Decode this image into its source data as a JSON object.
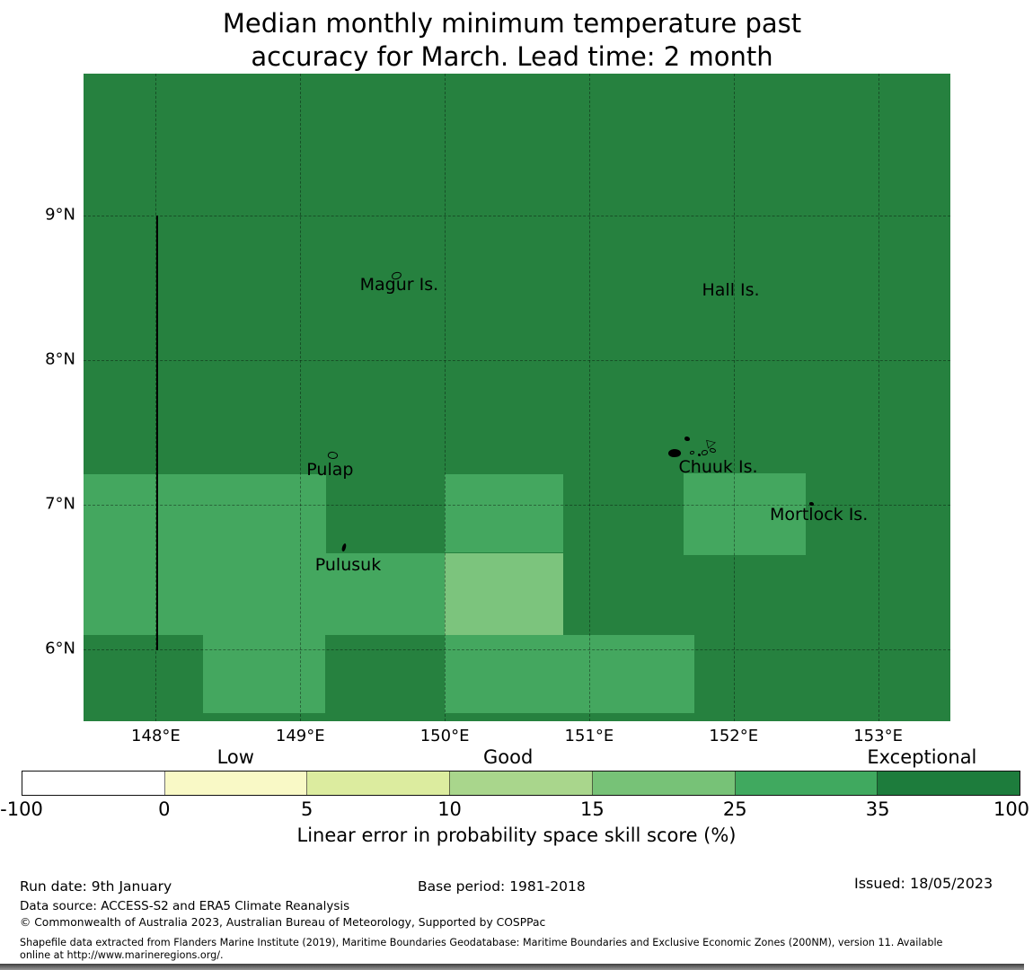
{
  "title": {
    "line1": "Median monthly minimum temperature past",
    "line2": "accuracy for March. Lead time: 2 month"
  },
  "chart_data": {
    "type": "heatmap",
    "title": "Median monthly minimum temperature past accuracy for March. Lead time: 2 month",
    "axes": {
      "lon_min": 147.5,
      "lon_max": 153.5,
      "lat_min": 5.5,
      "lat_max": 9.98,
      "grid": "dashed"
    },
    "x_ticks": [
      {
        "value": 148,
        "label": "148°E"
      },
      {
        "value": 149,
        "label": "149°E"
      },
      {
        "value": 150,
        "label": "150°E"
      },
      {
        "value": 151,
        "label": "151°E"
      },
      {
        "value": 152,
        "label": "152°E"
      },
      {
        "value": 153,
        "label": "153°E"
      }
    ],
    "y_ticks": [
      {
        "value": 9,
        "label": "9°N"
      },
      {
        "value": 8,
        "label": "8°N"
      },
      {
        "value": 7,
        "label": "7°N"
      },
      {
        "value": 6,
        "label": "6°N"
      }
    ],
    "background_value": "35-100",
    "map_palette": {
      "35-100": "#26813f",
      "25-35": "#44a75f",
      "15-25": "#7cc47d"
    },
    "cells": [
      {
        "lon1": 147.5,
        "lon2": 149.18,
        "lat1": 6.099,
        "lat2": 7.211,
        "value": "25-35"
      },
      {
        "lon1": 149.18,
        "lon2": 150.0,
        "lat1": 6.099,
        "lat2": 6.665,
        "value": "25-35"
      },
      {
        "lon1": 150.0,
        "lon2": 150.82,
        "lat1": 6.665,
        "lat2": 7.211,
        "value": "25-35"
      },
      {
        "lon1": 150.0,
        "lon2": 150.82,
        "lat1": 6.099,
        "lat2": 6.665,
        "value": "15-25"
      },
      {
        "lon1": 151.655,
        "lon2": 152.5,
        "lat1": 6.652,
        "lat2": 7.217,
        "value": "25-35"
      },
      {
        "lon1": 148.33,
        "lon2": 149.17,
        "lat1": 5.553,
        "lat2": 6.099,
        "value": "25-35"
      },
      {
        "lon1": 150.0,
        "lon2": 151.73,
        "lat1": 5.553,
        "lat2": 6.099,
        "value": "25-35"
      }
    ],
    "eez_line": {
      "lon": 148.005,
      "lat_from": 9.0,
      "lat_to": 5.99
    },
    "islands": [
      {
        "name": "magur",
        "lon": 149.667,
        "lat": 8.584,
        "w": 11,
        "h": 8,
        "style": "outline",
        "rot": -10
      },
      {
        "name": "pulap",
        "lon": 149.225,
        "lat": 7.342,
        "w": 11,
        "h": 8,
        "style": "outline",
        "rot": 15
      },
      {
        "name": "pulusuk",
        "lon": 149.306,
        "lat": 6.7,
        "w": 4,
        "h": 9,
        "style": "fill",
        "rot": 20
      },
      {
        "name": "chuuk-west",
        "lon": 151.594,
        "lat": 7.354,
        "w": 14,
        "h": 9,
        "style": "fill",
        "rot": -8
      },
      {
        "name": "chuuk-small-1",
        "lon": 151.68,
        "lat": 7.453,
        "w": 6,
        "h": 5,
        "style": "fill",
        "rot": 0
      },
      {
        "name": "chuuk-small-2",
        "lon": 151.71,
        "lat": 7.36,
        "w": 5,
        "h": 4,
        "style": "outline",
        "rot": 0
      },
      {
        "name": "chuuk-triangle",
        "lon": 151.855,
        "lat": 7.429,
        "w": 13,
        "h": 11,
        "style": "tri",
        "rot": -12
      },
      {
        "name": "chuuk-small-3",
        "lon": 151.8,
        "lat": 7.36,
        "w": 7,
        "h": 6,
        "style": "outline",
        "rot": 0
      },
      {
        "name": "chuuk-small-4",
        "lon": 151.855,
        "lat": 7.373,
        "w": 7,
        "h": 5,
        "style": "outline",
        "rot": 25
      },
      {
        "name": "chuuk-dot",
        "lon": 151.76,
        "lat": 7.342,
        "w": 3,
        "h": 3,
        "style": "fill",
        "rot": 0
      },
      {
        "name": "mortlock",
        "lon": 152.54,
        "lat": 7.006,
        "w": 5,
        "h": 4,
        "style": "fill",
        "rot": 0
      }
    ],
    "island_labels": [
      {
        "text": "Magur Is.",
        "lon": 149.685,
        "lat": 8.522
      },
      {
        "text": "Hall Is.",
        "lon": 151.98,
        "lat": 8.484
      },
      {
        "text": "Pulap",
        "lon": 149.206,
        "lat": 7.242
      },
      {
        "text": "Chuuk Is.",
        "lon": 151.893,
        "lat": 7.261
      },
      {
        "text": "Pulusuk",
        "lon": 149.331,
        "lat": 6.584
      },
      {
        "text": "Mortlock Is.",
        "lon": 152.59,
        "lat": 6.932
      }
    ],
    "colorbar": {
      "label": "Linear error in probability space skill score (%)",
      "boundaries": [
        -100,
        0,
        5,
        10,
        15,
        25,
        35,
        100
      ],
      "tick_labels": [
        "-100",
        "0",
        "5",
        "10",
        "15",
        "25",
        "35",
        "100"
      ],
      "segments": [
        {
          "range": "-100 to 0",
          "color": "#ffffff"
        },
        {
          "range": "0 to 5",
          "color": "#f9f9c6"
        },
        {
          "range": "5 to 10",
          "color": "#dcec9f"
        },
        {
          "range": "10 to 15",
          "color": "#a9d68c"
        },
        {
          "range": "15 to 25",
          "color": "#77c277"
        },
        {
          "range": "25 to 35",
          "color": "#40a95f"
        },
        {
          "range": "35 to 100",
          "color": "#1d7c3c"
        }
      ],
      "categories": [
        {
          "label": "Low",
          "seg_center": 1.5
        },
        {
          "label": "Good",
          "seg_center": 3.41
        },
        {
          "label": "Exceptional",
          "seg_center": 6.31
        }
      ]
    }
  },
  "footer": {
    "run_date": "Run date: 9th January",
    "base_period": "Base period: 1981-2018",
    "issued": "Issued: 18/05/2023",
    "data_source": "Data source: ACCESS-S2 and ERA5 Climate Reanalysis",
    "copyright": "© Commonwealth of Australia 2023, Australian Bureau of Meteorology, Supported by COSPPac",
    "shapefile_line1": "Shapefile data extracted from Flanders Marine Institute (2019), Maritime Boundaries Geodatabase: Maritime Boundaries and Exclusive Economic Zones (200NM), version 11. Available",
    "shapefile_line2": "online at http://www.marineregions.org/."
  }
}
